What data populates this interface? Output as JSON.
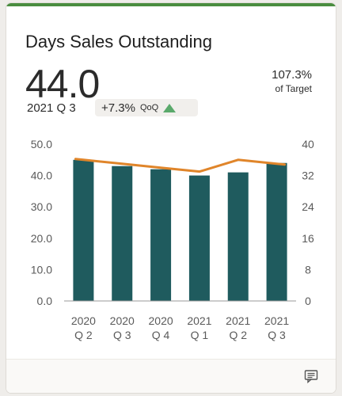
{
  "card": {
    "title": "Days Sales Outstanding",
    "value": "44.0",
    "period": "2021 Q 3",
    "change": "+7.3%",
    "change_basis": "QoQ",
    "target_pct": "107.3%",
    "target_label": "of Target",
    "accent_color": "#4a8d3f",
    "up_arrow_color": "#5aa96b",
    "comment_icon": "comment-icon"
  },
  "chart_data": {
    "type": "bar",
    "title": "",
    "xlabel": "",
    "ylabel": "",
    "categories": [
      [
        "2020",
        "Q 2"
      ],
      [
        "2020",
        "Q 3"
      ],
      [
        "2020",
        "Q 4"
      ],
      [
        "2021",
        "Q 1"
      ],
      [
        "2021",
        "Q 2"
      ],
      [
        "2021",
        "Q 3"
      ]
    ],
    "series": [
      {
        "type": "bar",
        "axis": "left",
        "color": "#1f5b5e",
        "values": [
          45.0,
          43.0,
          42.0,
          40.0,
          41.0,
          44.0
        ]
      },
      {
        "type": "line",
        "axis": "right",
        "color": "#e0852a",
        "values": [
          36,
          35,
          34,
          33,
          36,
          35
        ]
      }
    ],
    "left_axis": {
      "min": 0,
      "max": 50,
      "ticks": [
        "0.0",
        "10.0",
        "20.0",
        "30.0",
        "40.0",
        "50.0"
      ]
    },
    "right_axis": {
      "min": 0,
      "max": 40,
      "ticks": [
        "0",
        "8",
        "16",
        "24",
        "32",
        "40"
      ]
    },
    "grid": false,
    "legend": "none"
  }
}
